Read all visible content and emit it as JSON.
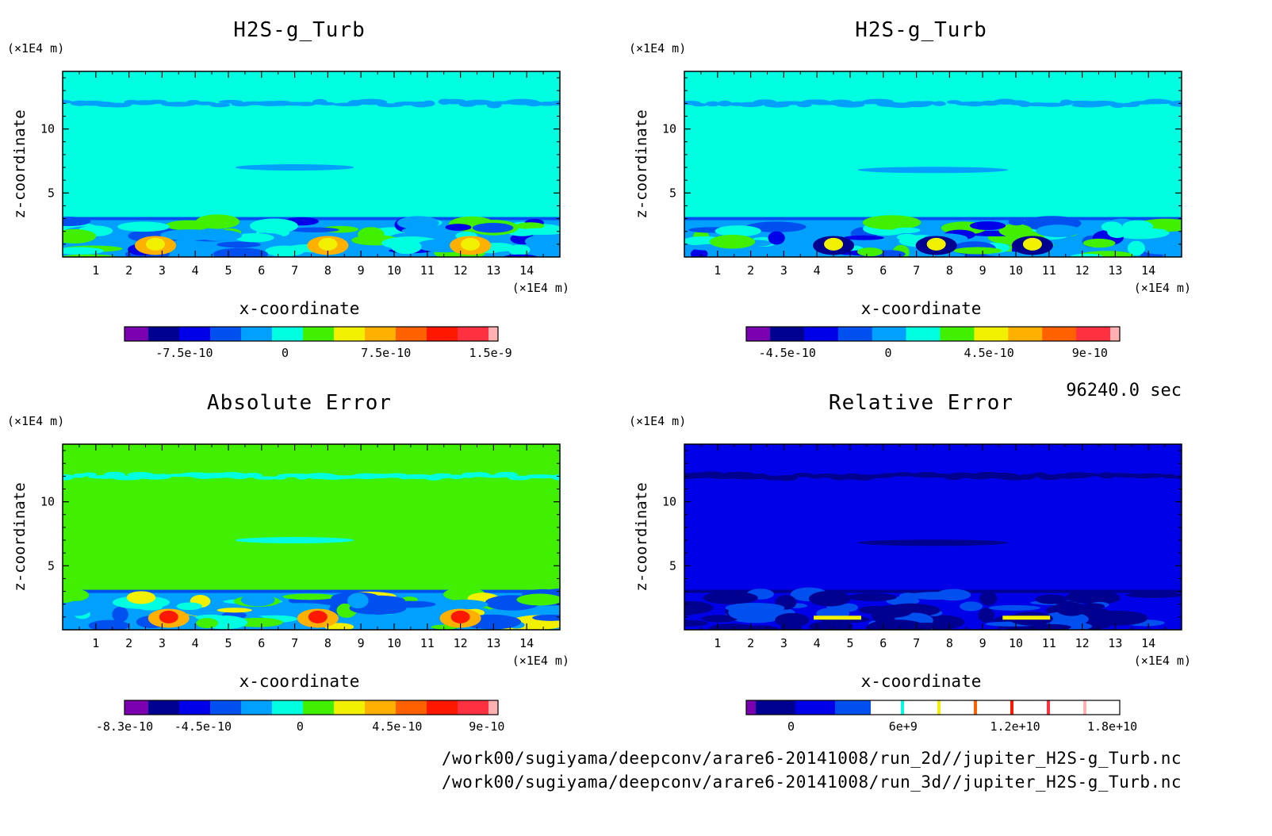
{
  "timestamp": "96240.0 sec",
  "file_paths": [
    "/work00/sugiyama/deepconv/arare6-20141008/run_2d//jupiter_H2S-g_Turb.nc",
    "/work00/sugiyama/deepconv/arare6-20141008/run_3d//jupiter_H2S-g_Turb.nc"
  ],
  "colors": {
    "palette": [
      "#7a00b0",
      "#000090",
      "#0000e8",
      "#0050f0",
      "#00a0ff",
      "#00ffe0",
      "#40f000",
      "#f0f000",
      "#ffb000",
      "#ff6000",
      "#ff1800",
      "#ff3040",
      "#ffb0b0"
    ]
  },
  "chart_data": [
    {
      "type": "heatmap",
      "id": "top-left",
      "title": "H2S-g_Turb",
      "xlabel": "x-coordinate",
      "ylabel": "z-coordinate",
      "x_unit": "(×1E4 m)",
      "y_unit": "(×1E4 m)",
      "xlim": [
        0,
        15
      ],
      "ylim": [
        0,
        14.5
      ],
      "xticks": [
        "1",
        "2",
        "3",
        "4",
        "5",
        "6",
        "7",
        "8",
        "9",
        "10",
        "11",
        "12",
        "13",
        "14"
      ],
      "yticks": [
        "5",
        "10"
      ],
      "background_level": 5,
      "colorbar": {
        "levels": 13,
        "tick_labels": [
          "-7.5e-10",
          "0",
          "7.5e-10",
          "1.5e-9"
        ]
      }
    },
    {
      "type": "heatmap",
      "id": "top-right",
      "title": "H2S-g_Turb",
      "xlabel": "x-coordinate",
      "ylabel": "z-coordinate",
      "x_unit": "(×1E4 m)",
      "y_unit": "(×1E4 m)",
      "xlim": [
        0,
        15
      ],
      "ylim": [
        0,
        14.5
      ],
      "xticks": [
        "1",
        "2",
        "3",
        "4",
        "5",
        "6",
        "7",
        "8",
        "9",
        "10",
        "11",
        "12",
        "13",
        "14"
      ],
      "yticks": [
        "5",
        "10"
      ],
      "background_level": 5,
      "colorbar": {
        "levels": 12,
        "tick_labels": [
          "-4.5e-10",
          "0",
          "4.5e-10",
          "9e-10"
        ]
      }
    },
    {
      "type": "heatmap",
      "id": "bottom-left",
      "title": "Absolute Error",
      "xlabel": "x-coordinate",
      "ylabel": "z-coordinate",
      "x_unit": "(×1E4 m)",
      "y_unit": "(×1E4 m)",
      "xlim": [
        0,
        15
      ],
      "ylim": [
        0,
        14.5
      ],
      "xticks": [
        "1",
        "2",
        "3",
        "4",
        "5",
        "6",
        "7",
        "8",
        "9",
        "10",
        "11",
        "12",
        "13",
        "14"
      ],
      "yticks": [
        "5",
        "10"
      ],
      "background_level": 6,
      "colorbar": {
        "levels": 13,
        "tick_labels": [
          "-8.3e-10",
          "-4.5e-10",
          "0",
          "4.5e-10",
          "9e-10"
        ]
      }
    },
    {
      "type": "heatmap",
      "id": "bottom-right",
      "title": "Relative Error",
      "xlabel": "x-coordinate",
      "ylabel": "z-coordinate",
      "x_unit": "(×1E4 m)",
      "y_unit": "(×1E4 m)",
      "xlim": [
        0,
        15
      ],
      "ylim": [
        0,
        14.5
      ],
      "xticks": [
        "1",
        "2",
        "3",
        "4",
        "5",
        "6",
        "7",
        "8",
        "9",
        "10",
        "11",
        "12",
        "13",
        "14"
      ],
      "yticks": [
        "5",
        "10"
      ],
      "background_level": 2,
      "colorbar": {
        "levels": 4,
        "tick_labels": [
          "0",
          "6e+9",
          "1.2e+10",
          "1.8e+10"
        ]
      }
    }
  ]
}
